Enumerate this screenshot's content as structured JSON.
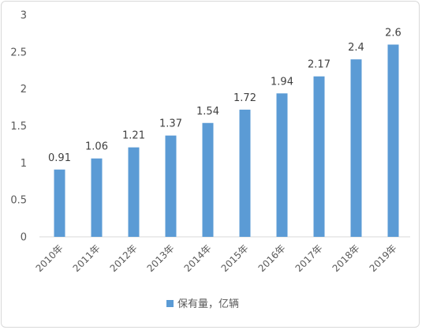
{
  "chart_data": {
    "type": "bar",
    "categories": [
      "2010年",
      "2011年",
      "2012年",
      "2013年",
      "2014年",
      "2015年",
      "2016年",
      "2017年",
      "2018年",
      "2019年"
    ],
    "series": [
      {
        "name": "保有量，亿辆",
        "values": [
          0.91,
          1.06,
          1.21,
          1.37,
          1.54,
          1.72,
          1.94,
          2.17,
          2.4,
          2.6
        ],
        "color": "#5b9bd5"
      }
    ],
    "ylim": [
      0,
      3
    ],
    "yticks": [
      "0",
      "0.5",
      "1",
      "1.5",
      "2",
      "2.5",
      "3"
    ],
    "grid": false,
    "legend_position": "bottom",
    "data_labels": [
      "0.91",
      "1.06",
      "1.21",
      "1.37",
      "1.54",
      "1.72",
      "1.94",
      "2.17",
      "2.4",
      "2.6"
    ]
  }
}
